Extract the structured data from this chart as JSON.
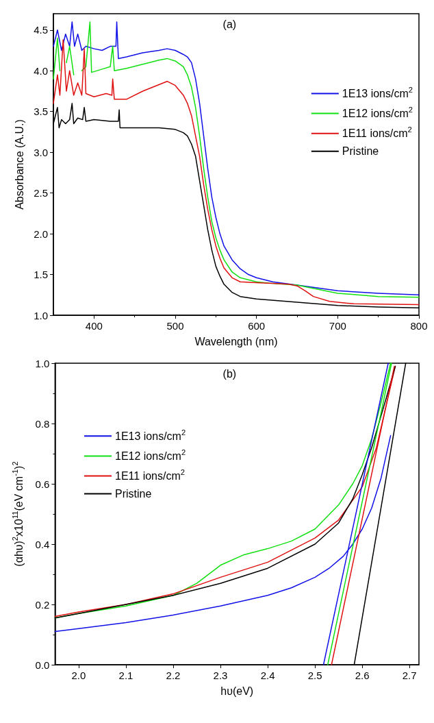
{
  "chart_data": [
    {
      "type": "line",
      "title": "(a)",
      "xlabel": "Wavelength (nm)",
      "ylabel": "Absorbance (A.U.)",
      "xlim": [
        350,
        800
      ],
      "ylim": [
        1.0,
        4.7
      ],
      "xticks": [
        400,
        500,
        600,
        700,
        800
      ],
      "yticks": [
        {
          "value": 1.0,
          "label": "1.0"
        },
        {
          "value": 1.5,
          "label": "1.5"
        },
        {
          "value": 2.0,
          "label": "2.0"
        },
        {
          "value": 2.5,
          "label": "2.5"
        },
        {
          "value": 3.0,
          "label": "3.0"
        },
        {
          "value": 3.5,
          "label": "3.5"
        },
        {
          "value": 4.0,
          "label": "4.0"
        },
        {
          "value": 4.5,
          "label": "4.5"
        }
      ],
      "legend": "right",
      "marker": "none",
      "line_style": "solid",
      "series": [
        {
          "name": "1E13 ions/cm$^{2}$",
          "color": "#1010e8",
          "x": [
            350,
            355,
            360,
            365,
            370,
            373,
            376,
            380,
            385,
            390,
            400,
            410,
            420,
            427,
            428,
            430,
            440,
            460,
            480,
            490,
            500,
            510,
            515,
            520,
            525,
            530,
            535,
            540,
            545,
            550,
            555,
            560,
            570,
            580,
            590,
            600,
            620,
            650,
            700,
            750,
            800
          ],
          "values": [
            4.3,
            4.5,
            4.25,
            4.45,
            4.3,
            4.6,
            4.3,
            4.45,
            4.25,
            4.3,
            4.27,
            4.25,
            4.3,
            4.3,
            4.6,
            4.15,
            4.17,
            4.22,
            4.25,
            4.27,
            4.25,
            4.2,
            4.17,
            4.1,
            3.9,
            3.6,
            3.2,
            2.8,
            2.45,
            2.2,
            2.0,
            1.85,
            1.68,
            1.57,
            1.5,
            1.46,
            1.41,
            1.37,
            1.3,
            1.27,
            1.25
          ]
        },
        {
          "name": "1E12 ions/cm$^{2}$",
          "color": "#10e010",
          "x": [
            350,
            355,
            358,
            362,
            366,
            370,
            375,
            380,
            385,
            390,
            395,
            397,
            410,
            420,
            423,
            425,
            440,
            460,
            480,
            490,
            500,
            510,
            515,
            520,
            525,
            530,
            535,
            540,
            545,
            550,
            555,
            560,
            570,
            580,
            600,
            620,
            650,
            700,
            750,
            800
          ],
          "values": [
            3.9,
            4.4,
            4.0,
            null,
            4.1,
            4.3,
            3.95,
            null,
            4.0,
            4.05,
            4.6,
            3.98,
            4.02,
            4.05,
            4.3,
            4.0,
            4.03,
            4.08,
            4.13,
            4.15,
            4.12,
            4.05,
            3.95,
            3.8,
            3.55,
            3.2,
            2.8,
            2.45,
            2.15,
            1.95,
            1.8,
            1.68,
            1.53,
            1.46,
            1.41,
            1.39,
            1.37,
            1.27,
            1.23,
            1.22
          ]
        },
        {
          "name": "1E11 ions/cm$^{2}$",
          "color": "#e01010",
          "x": [
            350,
            355,
            358,
            362,
            366,
            370,
            375,
            380,
            385,
            388,
            390,
            400,
            415,
            422,
            423,
            425,
            440,
            460,
            480,
            490,
            500,
            510,
            515,
            520,
            525,
            530,
            535,
            540,
            545,
            550,
            555,
            560,
            570,
            580,
            600,
            620,
            640,
            650,
            660,
            670,
            690,
            720,
            800
          ],
          "values": [
            3.6,
            3.95,
            3.7,
            4.38,
            3.75,
            4.0,
            3.7,
            3.85,
            3.7,
            4.27,
            3.72,
            3.68,
            3.72,
            3.7,
            3.9,
            3.65,
            3.65,
            3.75,
            3.83,
            3.87,
            3.82,
            3.7,
            3.6,
            3.45,
            3.2,
            2.95,
            2.6,
            2.3,
            2.05,
            1.85,
            1.7,
            1.58,
            1.46,
            1.41,
            1.4,
            1.39,
            1.38,
            1.36,
            1.3,
            1.23,
            1.17,
            1.14,
            1.13
          ]
        },
        {
          "name": "Pristine",
          "color": "#000000",
          "x": [
            350,
            355,
            357,
            360,
            365,
            370,
            373,
            375,
            380,
            386,
            388,
            390,
            400,
            420,
            430,
            431,
            432,
            450,
            480,
            500,
            510,
            515,
            520,
            525,
            530,
            535,
            540,
            545,
            550,
            555,
            560,
            570,
            580,
            600,
            650,
            700,
            750,
            800
          ],
          "values": [
            3.35,
            3.55,
            3.3,
            3.4,
            3.35,
            3.4,
            3.6,
            3.35,
            3.42,
            3.4,
            3.55,
            3.38,
            3.4,
            3.38,
            3.38,
            3.52,
            3.3,
            3.3,
            3.3,
            3.28,
            3.24,
            3.2,
            3.1,
            2.95,
            2.65,
            2.35,
            2.05,
            1.8,
            1.6,
            1.48,
            1.38,
            1.28,
            1.23,
            1.2,
            1.16,
            1.12,
            1.1,
            1.09
          ]
        }
      ]
    },
    {
      "type": "line",
      "title": "(b)",
      "xlabel": "hυ(eV)",
      "ylabel": "(αhυ)$^{2}$x10$^{11}$(eV cm$^{-1}$)$^{2}$",
      "xlim": [
        1.95,
        2.72
      ],
      "ylim": [
        0,
        1.0
      ],
      "xticks": [
        {
          "value": 2.0,
          "label": "2.0"
        },
        2.1,
        2.2,
        2.3,
        2.4,
        2.5,
        2.6,
        2.7
      ],
      "yticks": [
        {
          "value": 0,
          "label": "0.0"
        },
        0.2,
        0.4,
        0.6,
        0.8,
        {
          "value": 1.0,
          "label": "1.0"
        }
      ],
      "legend": "left",
      "marker": "none",
      "line_style": "solid",
      "series": [
        {
          "name": "1E13 ions/cm$^{2}$",
          "color": "#1010e8",
          "x": [
            1.95,
            2.0,
            2.1,
            2.2,
            2.3,
            2.4,
            2.45,
            2.5,
            2.53,
            2.56,
            2.58,
            2.6,
            2.62,
            2.64,
            2.66
          ],
          "values": [
            0.11,
            0.12,
            0.14,
            0.165,
            0.195,
            0.23,
            0.255,
            0.29,
            0.32,
            0.36,
            0.4,
            0.45,
            0.52,
            0.62,
            0.76
          ]
        },
        {
          "name": "1E12 ions/cm$^{2}$",
          "color": "#10e010",
          "x": [
            1.95,
            2.0,
            2.1,
            2.2,
            2.25,
            2.3,
            2.35,
            2.4,
            2.45,
            2.5,
            2.55,
            2.58,
            2.6,
            2.62,
            2.64,
            2.66
          ],
          "values": [
            0.155,
            0.17,
            0.195,
            0.23,
            0.27,
            0.33,
            0.365,
            0.385,
            0.41,
            0.45,
            0.53,
            0.6,
            0.66,
            0.75,
            0.87,
            1.0
          ]
        },
        {
          "name": "1E11 ions/cm$^{2}$",
          "color": "#e01010",
          "x": [
            1.95,
            2.0,
            2.1,
            2.2,
            2.3,
            2.4,
            2.5,
            2.55,
            2.6,
            2.63,
            2.67
          ],
          "values": [
            0.16,
            0.175,
            0.2,
            0.235,
            0.29,
            0.34,
            0.42,
            0.48,
            0.59,
            0.72,
            0.99
          ]
        },
        {
          "name": "Pristine",
          "color": "#000000",
          "x": [
            1.95,
            2.0,
            2.1,
            2.2,
            2.3,
            2.4,
            2.5,
            2.55,
            2.58,
            2.6,
            2.62,
            2.65,
            2.67
          ],
          "values": [
            0.155,
            0.17,
            0.2,
            0.23,
            0.27,
            0.32,
            0.4,
            0.47,
            0.55,
            0.63,
            0.72,
            0.88,
            0.99
          ]
        },
        {
          "type": "line",
          "color": "#1010e8",
          "x": [
            2.518,
            2.655
          ],
          "values": [
            0,
            1.0
          ]
        },
        {
          "type": "line",
          "color": "#10e010",
          "x": [
            2.527,
            2.662
          ],
          "values": [
            0,
            1.0
          ]
        },
        {
          "type": "line",
          "color": "#e01010",
          "x": [
            2.535,
            2.668
          ],
          "values": [
            0,
            0.99
          ]
        },
        {
          "type": "line",
          "color": "#000000",
          "x": [
            2.583,
            2.692
          ],
          "values": [
            0,
            1.0
          ]
        }
      ]
    }
  ]
}
